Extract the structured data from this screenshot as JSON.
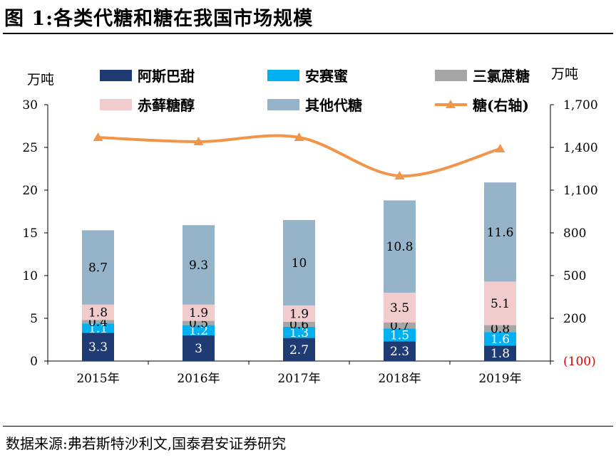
{
  "figure": {
    "title": "图 1:各类代糖和糖在我国市场规模",
    "source": "数据来源:弗若斯特沙利文,国泰君安证券研究"
  },
  "chart_data": {
    "type": "bar",
    "stacked": true,
    "categories": [
      "2015年",
      "2016年",
      "2017年",
      "2018年",
      "2019年"
    ],
    "y_left": {
      "unit": "万吨",
      "ylim": [
        0,
        30
      ],
      "ticks": [
        "0",
        "5",
        "10",
        "15",
        "20",
        "25",
        "30"
      ]
    },
    "y_right": {
      "unit": "万吨",
      "ylim": [
        -100,
        1700
      ],
      "ticks": [
        "(100)",
        "200",
        "500",
        "800",
        "1,100",
        "1,400",
        "1,700"
      ]
    },
    "grid": false,
    "legend_placement": "top",
    "series": [
      {
        "name": "阿斯巴甜",
        "color": "#1f3b73",
        "values": [
          3.3,
          3,
          2.7,
          2.3,
          1.8
        ],
        "labels": [
          "3.3",
          "3",
          "2.7",
          "2.3",
          "1.8"
        ]
      },
      {
        "name": "安赛蜜",
        "color": "#00b0f0",
        "values": [
          1.1,
          1.2,
          1.3,
          1.5,
          1.6
        ],
        "labels": [
          "1.1",
          "1.2",
          "1.3",
          "1.5",
          "1.6"
        ]
      },
      {
        "name": "三氯蔗糖",
        "color": "#a6a6a6",
        "values": [
          0.4,
          0.5,
          0.6,
          0.7,
          0.8
        ],
        "labels": [
          "0.4",
          "0.5",
          "0.6",
          "0.7",
          "0.8"
        ]
      },
      {
        "name": "赤藓糖醇",
        "color": "#f2cccc",
        "values": [
          1.8,
          1.9,
          1.9,
          3.5,
          5.1
        ],
        "labels": [
          "1.8",
          "1.9",
          "1.9",
          "3.5",
          "5.1"
        ]
      },
      {
        "name": "其他代糖",
        "color": "#95b3c9",
        "values": [
          8.7,
          9.3,
          10,
          10.8,
          11.6
        ],
        "labels": [
          "8.7",
          "9.3",
          "10",
          "10.8",
          "11.6"
        ]
      }
    ],
    "line_series": {
      "name": "糖(右轴)",
      "color": "#f0954a",
      "axis": "right",
      "values": [
        1470,
        1440,
        1470,
        1200,
        1390
      ]
    }
  }
}
